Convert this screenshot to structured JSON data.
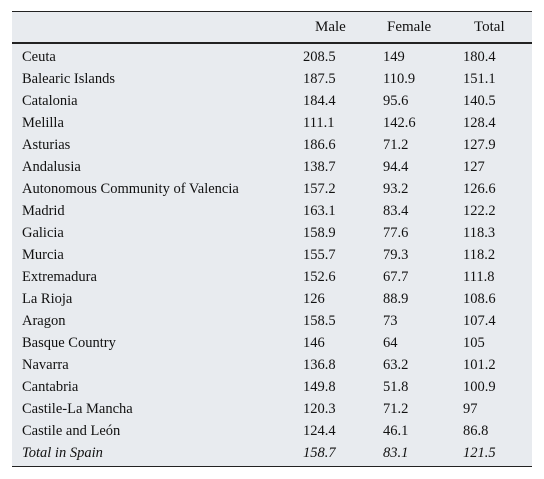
{
  "table": {
    "headers": {
      "region": "",
      "male": "Male",
      "female": "Female",
      "total": "Total"
    },
    "rows": [
      {
        "region": "Ceuta",
        "male": "208.5",
        "female": "149",
        "total": "180.4"
      },
      {
        "region": "Balearic Islands",
        "male": "187.5",
        "female": "110.9",
        "total": "151.1"
      },
      {
        "region": "Catalonia",
        "male": "184.4",
        "female": "95.6",
        "total": "140.5"
      },
      {
        "region": "Melilla",
        "male": "111.1",
        "female": "142.6",
        "total": "128.4"
      },
      {
        "region": "Asturias",
        "male": "186.6",
        "female": "71.2",
        "total": "127.9"
      },
      {
        "region": "Andalusia",
        "male": "138.7",
        "female": "94.4",
        "total": "127"
      },
      {
        "region": "Autonomous Community of Valencia",
        "male": "157.2",
        "female": "93.2",
        "total": "126.6"
      },
      {
        "region": "Madrid",
        "male": "163.1",
        "female": "83.4",
        "total": "122.2"
      },
      {
        "region": "Galicia",
        "male": "158.9",
        "female": "77.6",
        "total": "118.3"
      },
      {
        "region": "Murcia",
        "male": "155.7",
        "female": "79.3",
        "total": "118.2"
      },
      {
        "region": "Extremadura",
        "male": "152.6",
        "female": "67.7",
        "total": "111.8"
      },
      {
        "region": "La Rioja",
        "male": "126",
        "female": "88.9",
        "total": "108.6"
      },
      {
        "region": "Aragon",
        "male": "158.5",
        "female": "73",
        "total": "107.4"
      },
      {
        "region": "Basque Country",
        "male": "146",
        "female": "64",
        "total": "105"
      },
      {
        "region": "Navarra",
        "male": "136.8",
        "female": "63.2",
        "total": "101.2"
      },
      {
        "region": "Cantabria",
        "male": "149.8",
        "female": "51.8",
        "total": "100.9"
      },
      {
        "region": "Castile-La Mancha",
        "male": "120.3",
        "female": "71.2",
        "total": "97"
      },
      {
        "region": "Castile and León",
        "male": "124.4",
        "female": "46.1",
        "total": "86.8"
      }
    ],
    "total_row": {
      "region": "Total in Spain",
      "male": "158.7",
      "female": "83.1",
      "total": "121.5"
    }
  },
  "colors": {
    "table_background": "#e8ebef",
    "rule": "#222222"
  }
}
